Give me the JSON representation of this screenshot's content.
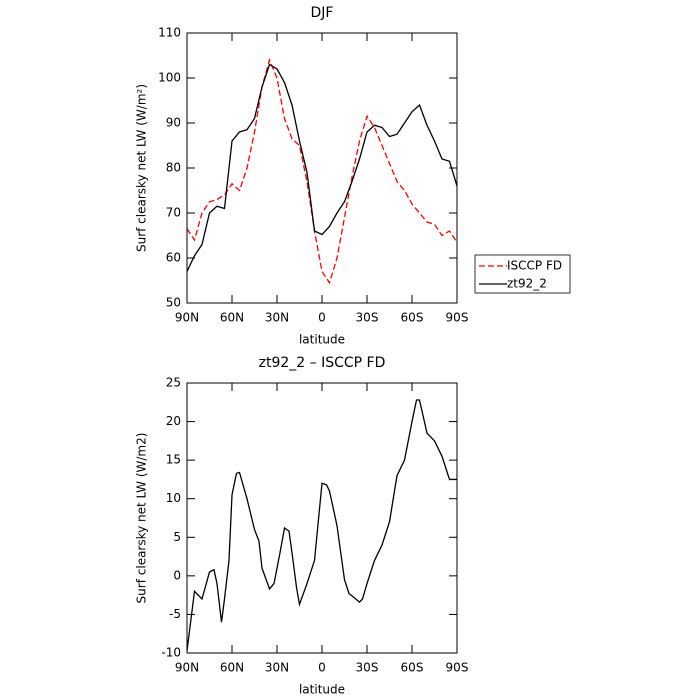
{
  "chart_data": [
    {
      "type": "line",
      "title": "DJF",
      "xlabel": "latitude",
      "ylabel": "Surf clearsky net LW (W/m²)",
      "x": [
        90,
        85,
        80,
        75,
        70,
        65,
        60,
        55,
        50,
        45,
        40,
        35,
        30,
        25,
        20,
        15,
        10,
        5,
        0,
        -5,
        -10,
        -15,
        -20,
        -25,
        -30,
        -35,
        -40,
        -45,
        -50,
        -55,
        -60,
        -65,
        -70,
        -75,
        -80,
        -85,
        -90
      ],
      "xlim": [
        90,
        -90
      ],
      "xticks": [
        {
          "value": 90,
          "label": "90N"
        },
        {
          "value": 60,
          "label": "60N"
        },
        {
          "value": 30,
          "label": "30N"
        },
        0,
        {
          "value": -30,
          "label": "30S"
        },
        {
          "value": -60,
          "label": "60S"
        },
        {
          "value": -90,
          "label": "90S"
        }
      ],
      "ylim": [
        50,
        110
      ],
      "yticks": [
        50,
        60,
        70,
        80,
        90,
        100,
        110
      ],
      "legend": "outside-right",
      "series": [
        {
          "name": "ISCCP FD",
          "color": "#ff0000",
          "dash": true,
          "values": [
            66.5,
            64,
            70,
            72.5,
            73,
            74,
            76.5,
            75,
            80,
            88,
            98,
            104,
            100,
            91,
            86.5,
            85,
            77,
            66,
            57,
            54.5,
            60,
            69,
            78,
            86,
            91.5,
            89,
            85,
            81,
            77,
            75,
            72,
            70,
            68,
            67.5,
            65,
            66,
            63.5
          ]
        },
        {
          "name": "zt92_2",
          "color": "#000000",
          "dash": false,
          "values": [
            57,
            60.5,
            63,
            70,
            71.5,
            71,
            86,
            88,
            88.5,
            91,
            98,
            103,
            102,
            99,
            94,
            86,
            79,
            66,
            65.2,
            67,
            70,
            72.5,
            77,
            82,
            88,
            89.5,
            89,
            87,
            87.5,
            90,
            92.5,
            94,
            89.5,
            86,
            82,
            81.5,
            76
          ]
        }
      ]
    },
    {
      "type": "line",
      "title": "zt92_2 – ISCCP FD",
      "xlabel": "latitude",
      "ylabel": "Surf clearsky net LW (W/m2)",
      "x": [
        90,
        85,
        80,
        75,
        72,
        70,
        67,
        65,
        62,
        60,
        57,
        55,
        50,
        45,
        42,
        40,
        35,
        32,
        28,
        25,
        22,
        20,
        17,
        15,
        10,
        5,
        2,
        0,
        -3,
        -5,
        -10,
        -15,
        -18,
        -20,
        -25,
        -27,
        -30,
        -35,
        -40,
        -45,
        -50,
        -55,
        -60,
        -63,
        -65,
        -70,
        -75,
        -80,
        -85,
        -90
      ],
      "xlim": [
        90,
        -90
      ],
      "xticks": [
        {
          "value": 90,
          "label": "90N"
        },
        {
          "value": 60,
          "label": "60N"
        },
        {
          "value": 30,
          "label": "30N"
        },
        0,
        {
          "value": -30,
          "label": "30S"
        },
        {
          "value": -60,
          "label": "60S"
        },
        {
          "value": -90,
          "label": "90S"
        }
      ],
      "ylim": [
        -10,
        25
      ],
      "yticks": [
        -10,
        -5,
        0,
        5,
        10,
        15,
        20,
        25
      ],
      "series": [
        {
          "color": "#000000",
          "dash": false,
          "values": [
            -9.7,
            -2,
            -3,
            0.5,
            0.8,
            -1,
            -6,
            -3,
            2,
            10.5,
            13.3,
            13.4,
            10,
            6,
            4.5,
            1,
            -1.7,
            -1,
            3,
            6.2,
            5.8,
            3,
            -1.5,
            -3.7,
            -1,
            2,
            8,
            12,
            11.8,
            11,
            6.5,
            -0.5,
            -2.3,
            -2.6,
            -3.4,
            -3,
            -1,
            2,
            4,
            7,
            13,
            15,
            20,
            22.8,
            22.8,
            18.5,
            17.5,
            15.5,
            12.5,
            12.5
          ]
        }
      ]
    }
  ]
}
